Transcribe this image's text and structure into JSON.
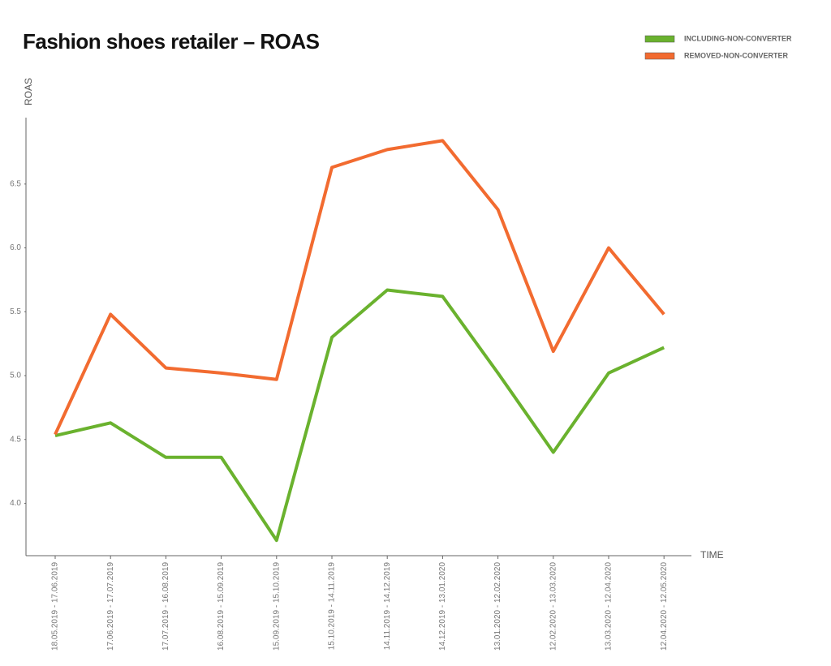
{
  "chart_data": {
    "type": "line",
    "title": "Fashion shoes retailer – ROAS",
    "y_label": "ROAS",
    "x_label": "TIME",
    "categories": [
      "18.05.2019 - 17.06.2019",
      "17.06.2019 - 17.07.2019",
      "17.07.2019 - 16.08.2019",
      "16.08.2019 - 15.09.2019",
      "15.09.2019 - 15.10.2019",
      "15.10.2019 - 14.11.2019",
      "14.11.2019 - 14.12.2019",
      "14.12.2019 - 13.01.2020",
      "13.01.2020 - 12.02.2020",
      "12.02.2020 - 13.03.2020",
      "13.03.2020 - 12.04.2020",
      "12.04.2020 - 12.05.2020"
    ],
    "series": [
      {
        "name": "INCLUDING-NON-CONVERTER",
        "color": "#6ab22e",
        "values": [
          4.53,
          4.63,
          4.36,
          4.36,
          3.71,
          5.3,
          5.67,
          5.62,
          5.02,
          4.4,
          5.02,
          5.22
        ]
      },
      {
        "name": "REMOVED-NON-CONVERTER",
        "color": "#f26b30",
        "values": [
          4.54,
          5.48,
          5.06,
          5.02,
          4.97,
          6.63,
          6.77,
          6.84,
          6.3,
          5.19,
          6.0,
          5.48
        ]
      }
    ],
    "ylim": [
      3.59,
      7.02
    ],
    "yticks": [
      {
        "value": 4,
        "label": "4.0"
      },
      4.5,
      {
        "value": 5,
        "label": "5.0"
      },
      5.5,
      {
        "value": 6,
        "label": "6.0"
      },
      6.5
    ],
    "grid": false,
    "legend": "top-right"
  }
}
